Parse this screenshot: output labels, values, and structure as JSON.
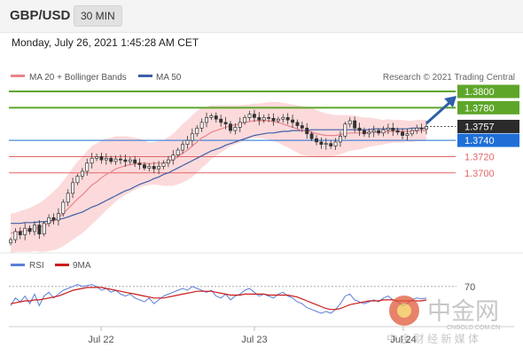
{
  "header": {
    "pair": "GBP/USD",
    "interval": "30 MIN",
    "datetime": "Monday, July 26, 2021 1:45:28 AM CET"
  },
  "legend": {
    "ma20": "MA 20 + Bollinger Bands",
    "ma50": "MA 50",
    "credit": "Research © 2021 Trading Central"
  },
  "rsi_legend": {
    "rsi": "RSI",
    "ma9": "9MA"
  },
  "colors": {
    "resistance": "#5ea62a",
    "pivot": "#1f6fd6",
    "support": "#e06666",
    "ma20": "#e9858b",
    "ma50": "#3c5fa8",
    "band": "#fbd3d5",
    "candle": "#333333",
    "arrow": "#2e5fa8",
    "current": "#2b2b2b",
    "rsi": "#5b7fd6",
    "rsi_ma": "#cc1a1a"
  },
  "chart_data": [
    {
      "type": "candlestick",
      "levels": [
        {
          "label": "1.3800",
          "value": 1.38,
          "kind": "resistance"
        },
        {
          "label": "1.3780",
          "value": 1.378,
          "kind": "resistance"
        },
        {
          "label": "1.3757",
          "value": 1.3757,
          "kind": "current"
        },
        {
          "label": "1.3740",
          "value": 1.374,
          "kind": "pivot"
        },
        {
          "label": "1.3720",
          "value": 1.372,
          "kind": "support"
        },
        {
          "label": "1.3700",
          "value": 1.37,
          "kind": "support"
        }
      ],
      "x_ticks": [
        "Jul 22",
        "Jul 23",
        "Jul 24"
      ],
      "y_range": [
        1.3605,
        1.3812
      ],
      "closes": [
        1.3618,
        1.3628,
        1.3624,
        1.3632,
        1.3628,
        1.3636,
        1.3625,
        1.3638,
        1.3645,
        1.3642,
        1.365,
        1.3664,
        1.3675,
        1.3688,
        1.3696,
        1.3702,
        1.3712,
        1.3718,
        1.372,
        1.3716,
        1.3718,
        1.3714,
        1.3717,
        1.3716,
        1.3714,
        1.3716,
        1.3712,
        1.371,
        1.3706,
        1.3708,
        1.3705,
        1.3708,
        1.3712,
        1.3716,
        1.3722,
        1.3728,
        1.3735,
        1.374,
        1.3748,
        1.3755,
        1.3762,
        1.3768,
        1.377,
        1.3766,
        1.3762,
        1.376,
        1.3752,
        1.3756,
        1.3762,
        1.3768,
        1.3772,
        1.3768,
        1.3765,
        1.3768,
        1.3767,
        1.3764,
        1.3766,
        1.3768,
        1.3765,
        1.3762,
        1.3758,
        1.3755,
        1.3748,
        1.3742,
        1.3738,
        1.3735,
        1.3736,
        1.3733,
        1.3738,
        1.3745,
        1.376,
        1.3764,
        1.3755,
        1.3752,
        1.3748,
        1.375,
        1.3752,
        1.3749,
        1.3753,
        1.3755,
        1.3752,
        1.375,
        1.3746,
        1.3748,
        1.3752,
        1.3755,
        1.3754,
        1.3757
      ],
      "ma20": [
        1.3626,
        1.3627,
        1.3628,
        1.3629,
        1.363,
        1.3632,
        1.3633,
        1.3635,
        1.3638,
        1.3641,
        1.3645,
        1.365,
        1.3656,
        1.3662,
        1.3668,
        1.3673,
        1.3679,
        1.3685,
        1.3689,
        1.3694,
        1.3698,
        1.3701,
        1.3705,
        1.3707,
        1.3709,
        1.371,
        1.3711,
        1.3712,
        1.3712,
        1.3711,
        1.3712,
        1.3712,
        1.3712,
        1.3714,
        1.3716,
        1.372,
        1.3724,
        1.3728,
        1.3733,
        1.3738,
        1.3743,
        1.3746,
        1.375,
        1.3752,
        1.3754,
        1.3756,
        1.3758,
        1.3759,
        1.376,
        1.3762,
        1.3763,
        1.3764,
        1.3764,
        1.3764,
        1.3764,
        1.3763,
        1.3762,
        1.376,
        1.3758,
        1.3756,
        1.3754,
        1.3752,
        1.3751,
        1.375,
        1.3748,
        1.3747,
        1.3746,
        1.3746,
        1.3746,
        1.3747,
        1.3748,
        1.3749,
        1.3749,
        1.3749,
        1.3749,
        1.375,
        1.375,
        1.375,
        1.375,
        1.3751,
        1.3751,
        1.3751,
        1.3751,
        1.3751,
        1.3751,
        1.3752,
        1.3752,
        1.3752
      ],
      "ma50": [
        1.3638,
        1.3638,
        1.3638,
        1.3639,
        1.3639,
        1.3639,
        1.364,
        1.364,
        1.3641,
        1.3642,
        1.3643,
        1.3644,
        1.3646,
        1.3648,
        1.365,
        1.3652,
        1.3655,
        1.3658,
        1.366,
        1.3663,
        1.3666,
        1.3669,
        1.3672,
        1.3675,
        1.3678,
        1.368,
        1.3683,
        1.3686,
        1.3688,
        1.369,
        1.3693,
        1.3695,
        1.3698,
        1.37,
        1.3703,
        1.3706,
        1.3709,
        1.3712,
        1.3715,
        1.3718,
        1.3721,
        1.3724,
        1.3727,
        1.3729,
        1.3731,
        1.3734,
        1.3736,
        1.3738,
        1.374,
        1.3742,
        1.3744,
        1.3746,
        1.3747,
        1.3748,
        1.3749,
        1.3749,
        1.375,
        1.3751,
        1.3751,
        1.3752,
        1.3752,
        1.3752,
        1.3752,
        1.3753,
        1.3753,
        1.3753,
        1.3753,
        1.3753,
        1.3753,
        1.3753,
        1.3753,
        1.3753,
        1.3753,
        1.3753,
        1.3753,
        1.3753,
        1.3754,
        1.3754,
        1.3754,
        1.3754,
        1.3754,
        1.3754,
        1.3754,
        1.3754,
        1.3755,
        1.3755,
        1.3755,
        1.3755
      ],
      "bollinger_width": [
        0.0024,
        0.0024,
        0.0025,
        0.0026,
        0.0027,
        0.0028,
        0.003,
        0.0032,
        0.0034,
        0.0036,
        0.0038,
        0.004,
        0.0042,
        0.0044,
        0.0046,
        0.0047,
        0.0048,
        0.0048,
        0.0047,
        0.0046,
        0.0044,
        0.0042,
        0.004,
        0.0038,
        0.0036,
        0.0034,
        0.0032,
        0.003,
        0.0028,
        0.0026,
        0.0026,
        0.0027,
        0.0028,
        0.003,
        0.0032,
        0.0034,
        0.0036,
        0.0037,
        0.0038,
        0.0038,
        0.0037,
        0.0035,
        0.0033,
        0.0031,
        0.0029,
        0.0027,
        0.0025,
        0.0024,
        0.0023,
        0.0022,
        0.0021,
        0.0021,
        0.0021,
        0.0022,
        0.0023,
        0.0024,
        0.0025,
        0.0026,
        0.0027,
        0.0028,
        0.0029,
        0.003,
        0.003,
        0.003,
        0.0029,
        0.0028,
        0.0027,
        0.0026,
        0.0025,
        0.0024,
        0.0023,
        0.0022,
        0.0021,
        0.002,
        0.0019,
        0.0018,
        0.0017,
        0.0016,
        0.0015,
        0.0015,
        0.0014,
        0.0014,
        0.0014,
        0.0013,
        0.0013,
        0.0013,
        0.0013,
        0.0013
      ]
    },
    {
      "type": "line",
      "indicator": "RSI",
      "level_label": "70",
      "level": 70,
      "y_range": [
        30,
        80
      ],
      "rsi": [
        50,
        58,
        54,
        60,
        52,
        62,
        50,
        60,
        64,
        58,
        62,
        66,
        68,
        70,
        72,
        70,
        71,
        72,
        70,
        66,
        68,
        64,
        66,
        62,
        60,
        62,
        58,
        56,
        54,
        58,
        52,
        56,
        60,
        62,
        64,
        66,
        68,
        66,
        70,
        68,
        66,
        64,
        66,
        60,
        58,
        62,
        56,
        60,
        62,
        66,
        68,
        64,
        60,
        62,
        60,
        58,
        62,
        64,
        60,
        58,
        54,
        52,
        48,
        46,
        44,
        42,
        44,
        42,
        46,
        52,
        60,
        62,
        56,
        54,
        52,
        54,
        56,
        54,
        58,
        60,
        56,
        54,
        50,
        52,
        56,
        58,
        57,
        58
      ],
      "ma9": [
        52,
        53,
        54,
        55,
        55,
        56,
        56,
        57,
        58,
        59,
        60,
        62,
        64,
        66,
        67,
        68,
        69,
        69,
        69,
        69,
        68,
        67,
        66,
        65,
        64,
        63,
        62,
        61,
        60,
        59,
        58,
        58,
        58,
        59,
        60,
        61,
        62,
        63,
        64,
        65,
        65,
        65,
        65,
        64,
        63,
        62,
        61,
        61,
        61,
        62,
        62,
        62,
        62,
        62,
        61,
        61,
        61,
        61,
        61,
        60,
        59,
        57,
        55,
        53,
        51,
        49,
        47,
        46,
        46,
        47,
        49,
        51,
        52,
        53,
        54,
        55,
        55,
        55,
        56,
        56,
        56,
        55,
        55,
        55,
        55,
        55,
        55,
        56
      ]
    }
  ],
  "watermark": {
    "name": "中金网",
    "url": "CNGOLD.COM.CN",
    "tagline": "中 金 财 经 新 媒 体"
  }
}
